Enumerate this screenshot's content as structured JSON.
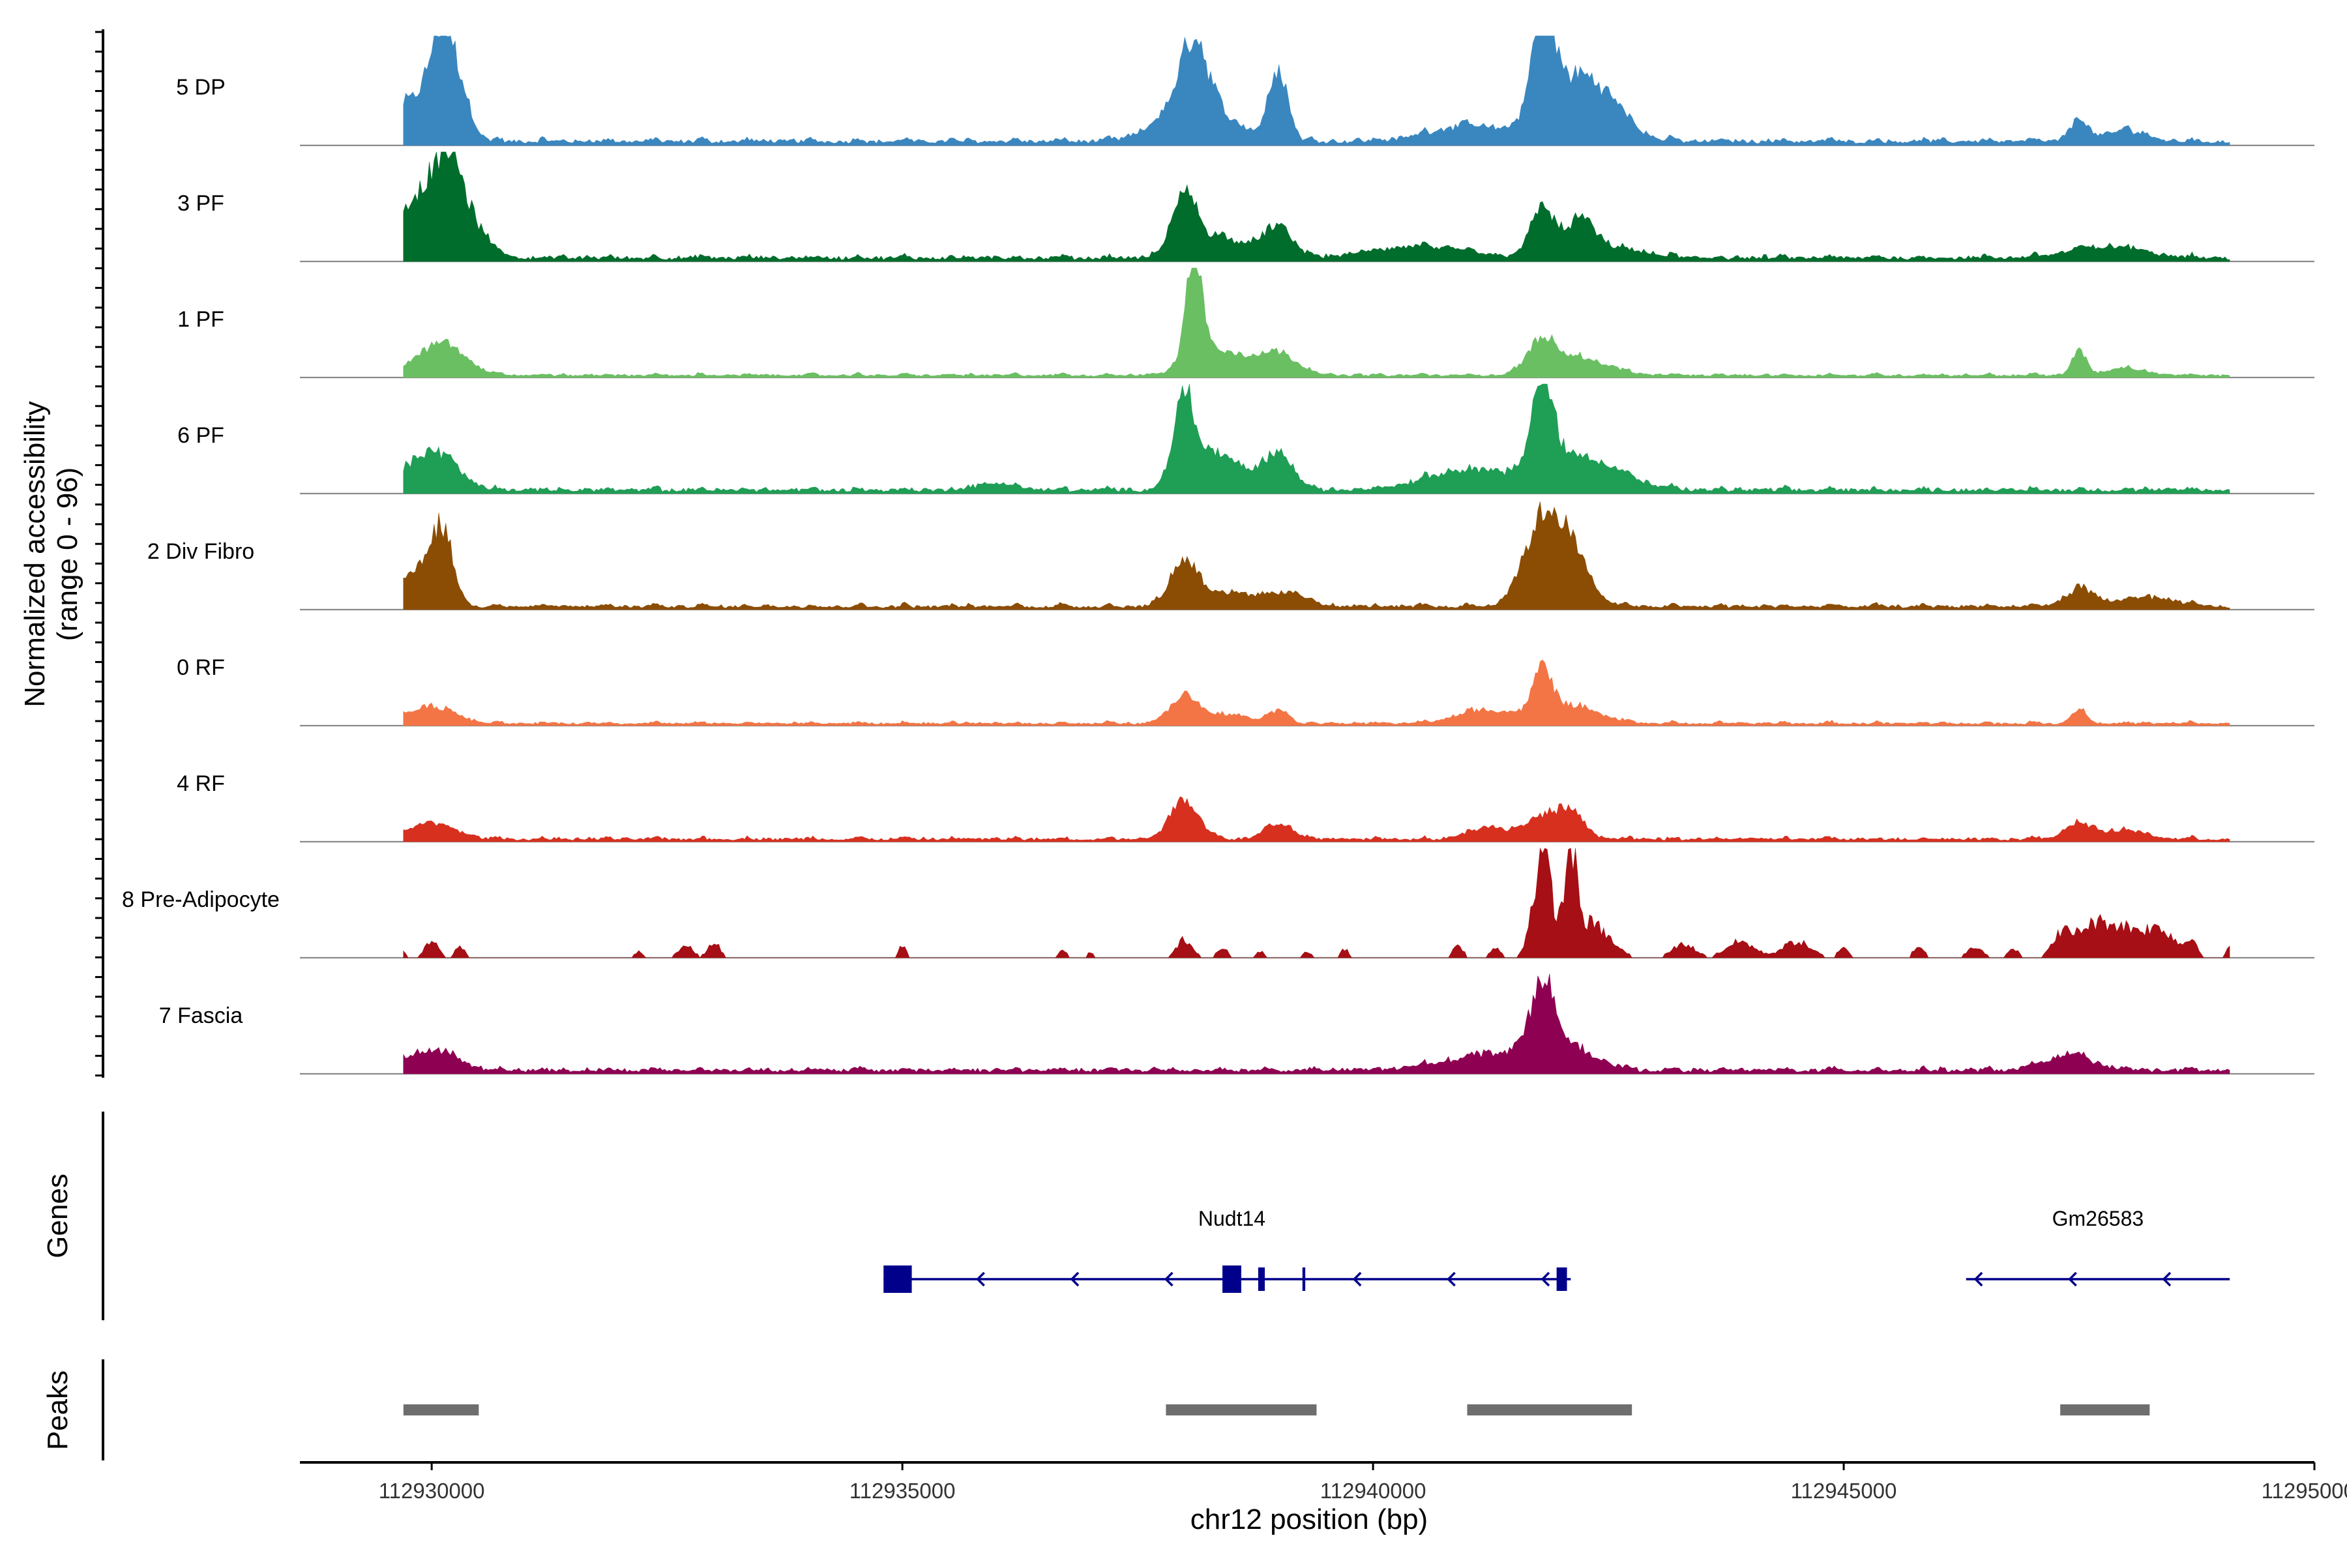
{
  "chart_data": {
    "type": "area",
    "title": "",
    "chromosome": "chr12",
    "xlabel": "chr12 position (bp)",
    "ylabel_line1": "Normalized accessibility",
    "ylabel_line2": "(range 0 - 96)",
    "xlim": [
      112928600,
      112950000
    ],
    "ylim": [
      0,
      96
    ],
    "data_range": [
      112929700,
      112949100
    ],
    "x_ticks": [
      {
        "value": 112930000,
        "label": "112930000"
      },
      {
        "value": 112935000,
        "label": "112935000"
      },
      {
        "value": 112940000,
        "label": "112940000"
      },
      {
        "value": 112945000,
        "label": "112945000"
      },
      {
        "value": 112950000,
        "label": "112950000"
      }
    ],
    "tracks": [
      {
        "name": "5 DP",
        "color": "#3a87c0",
        "base": 5,
        "noise": 4,
        "sparse": false,
        "peaks": [
          [
            112929800,
            35,
            220
          ],
          [
            112930100,
            80,
            120
          ],
          [
            112930300,
            40,
            120
          ],
          [
            112938100,
            62,
            140
          ],
          [
            112938000,
            30,
            300
          ],
          [
            112938500,
            12,
            250
          ],
          [
            112939000,
            60,
            100
          ],
          [
            112941000,
            14,
            400
          ],
          [
            112941800,
            90,
            110
          ],
          [
            112942100,
            50,
            300
          ],
          [
            112942500,
            22,
            250
          ],
          [
            112947500,
            18,
            100
          ],
          [
            112948000,
            10,
            200
          ]
        ]
      },
      {
        "name": "3 PF",
        "color": "#006d2c",
        "base": 4,
        "noise": 4,
        "sparse": false,
        "peaks": [
          [
            112929900,
            55,
            250
          ],
          [
            112930200,
            65,
            150
          ],
          [
            112930500,
            18,
            150
          ],
          [
            112938000,
            50,
            130
          ],
          [
            112938400,
            18,
            300
          ],
          [
            112939000,
            25,
            150
          ],
          [
            112940500,
            10,
            500
          ],
          [
            112941800,
            45,
            120
          ],
          [
            112942200,
            32,
            150
          ],
          [
            112942600,
            8,
            300
          ],
          [
            112947800,
            10,
            400
          ]
        ]
      },
      {
        "name": "1 PF",
        "color": "#6abf63",
        "base": 3,
        "noise": 2,
        "sparse": false,
        "peaks": [
          [
            112930100,
            28,
            250
          ],
          [
            112938100,
            95,
            90
          ],
          [
            112938400,
            20,
            300
          ],
          [
            112939000,
            18,
            200
          ],
          [
            112941800,
            28,
            150
          ],
          [
            112942200,
            15,
            300
          ],
          [
            112947500,
            20,
            80
          ],
          [
            112948000,
            6,
            200
          ]
        ]
      },
      {
        "name": "6 PF",
        "color": "#1f9e55",
        "base": 4,
        "noise": 4,
        "sparse": false,
        "peaks": [
          [
            112930000,
            35,
            250
          ],
          [
            112938000,
            78,
            120
          ],
          [
            112938400,
            30,
            250
          ],
          [
            112939000,
            32,
            150
          ],
          [
            112941000,
            18,
            450
          ],
          [
            112941800,
            80,
            110
          ],
          [
            112942200,
            30,
            400
          ],
          [
            112936000,
            6,
            200
          ]
        ]
      },
      {
        "name": "2 Div Fibro",
        "color": "#8b4d04",
        "base": 4,
        "noise": 3,
        "sparse": false,
        "peaks": [
          [
            112929800,
            28,
            150
          ],
          [
            112930100,
            68,
            120
          ],
          [
            112938000,
            40,
            150
          ],
          [
            112938500,
            12,
            250
          ],
          [
            112939100,
            12,
            200
          ],
          [
            112941800,
            70,
            200
          ],
          [
            112942100,
            40,
            200
          ],
          [
            112947500,
            15,
            150
          ],
          [
            112948200,
            8,
            300
          ]
        ]
      },
      {
        "name": "0 RF",
        "color": "#f37545",
        "base": 3,
        "noise": 2,
        "sparse": false,
        "peaks": [
          [
            112930000,
            15,
            250
          ],
          [
            112938000,
            25,
            150
          ],
          [
            112938500,
            8,
            200
          ],
          [
            112939000,
            12,
            100
          ],
          [
            112941200,
            12,
            300
          ],
          [
            112941800,
            40,
            100
          ],
          [
            112942100,
            15,
            300
          ],
          [
            112947500,
            12,
            80
          ]
        ]
      },
      {
        "name": "4 RF",
        "color": "#d7301f",
        "base": 3,
        "noise": 3,
        "sparse": false,
        "peaks": [
          [
            112930000,
            14,
            250
          ],
          [
            112938000,
            35,
            150
          ],
          [
            112939000,
            14,
            150
          ],
          [
            112941200,
            10,
            200
          ],
          [
            112941800,
            18,
            200
          ],
          [
            112942100,
            20,
            150
          ],
          [
            112947500,
            14,
            150
          ],
          [
            112948000,
            8,
            200
          ]
        ]
      },
      {
        "name": "8 Pre-Adipocyte",
        "color": "#a50f15",
        "base": 0,
        "noise": 0,
        "sparse": true,
        "peaks": [
          [
            112929700,
            5,
            40
          ],
          [
            112930000,
            14,
            70
          ],
          [
            112930300,
            10,
            50
          ],
          [
            112932200,
            6,
            40
          ],
          [
            112932700,
            10,
            80
          ],
          [
            112933000,
            14,
            60
          ],
          [
            112935000,
            10,
            40
          ],
          [
            112936700,
            6,
            50
          ],
          [
            112937000,
            5,
            40
          ],
          [
            112938000,
            16,
            80
          ],
          [
            112938400,
            8,
            60
          ],
          [
            112938800,
            6,
            40
          ],
          [
            112939300,
            6,
            40
          ],
          [
            112939700,
            8,
            40
          ],
          [
            112940900,
            10,
            60
          ],
          [
            112941300,
            8,
            60
          ],
          [
            112941800,
            88,
            100
          ],
          [
            112942100,
            82,
            60
          ],
          [
            112942300,
            30,
            200
          ],
          [
            112943300,
            12,
            120
          ],
          [
            112943900,
            14,
            150
          ],
          [
            112944500,
            14,
            150
          ],
          [
            112945000,
            8,
            60
          ],
          [
            112945800,
            10,
            60
          ],
          [
            112946400,
            10,
            80
          ],
          [
            112946800,
            8,
            60
          ],
          [
            112947300,
            16,
            80
          ],
          [
            112947600,
            22,
            200
          ],
          [
            112948000,
            24,
            250
          ],
          [
            112948400,
            18,
            150
          ],
          [
            112948700,
            14,
            60
          ],
          [
            112949100,
            10,
            40
          ]
        ]
      },
      {
        "name": "7 Fascia",
        "color": "#8e0152",
        "base": 4,
        "noise": 4,
        "sparse": false,
        "peaks": [
          [
            112930000,
            18,
            250
          ],
          [
            112941300,
            15,
            500
          ],
          [
            112941800,
            60,
            110
          ],
          [
            112942000,
            20,
            300
          ],
          [
            112947400,
            14,
            250
          ]
        ]
      }
    ],
    "genes": [
      {
        "name": "Nudt14",
        "start": 112934800,
        "end": 112942100,
        "strand": "-",
        "exons": [
          [
            112934800,
            112935100
          ],
          [
            112938400,
            112938600
          ],
          [
            112938780,
            112938850
          ],
          [
            112939250,
            112939280
          ],
          [
            112941950,
            112942060
          ]
        ],
        "arrows": [
          112935800,
          112936800,
          112937800,
          112939800,
          112940800,
          112941800
        ]
      },
      {
        "name": "Gm26583",
        "start": 112946300,
        "end": 112949100,
        "strand": "-",
        "exons": [],
        "arrows": [
          112946400,
          112947400,
          112948400
        ]
      }
    ],
    "peaks_track": [
      [
        112929700,
        112930500
      ],
      [
        112937800,
        112939400
      ],
      [
        112941000,
        112942750
      ],
      [
        112947300,
        112948250
      ]
    ],
    "genes_label": "Genes",
    "peaks_label": "Peaks"
  }
}
